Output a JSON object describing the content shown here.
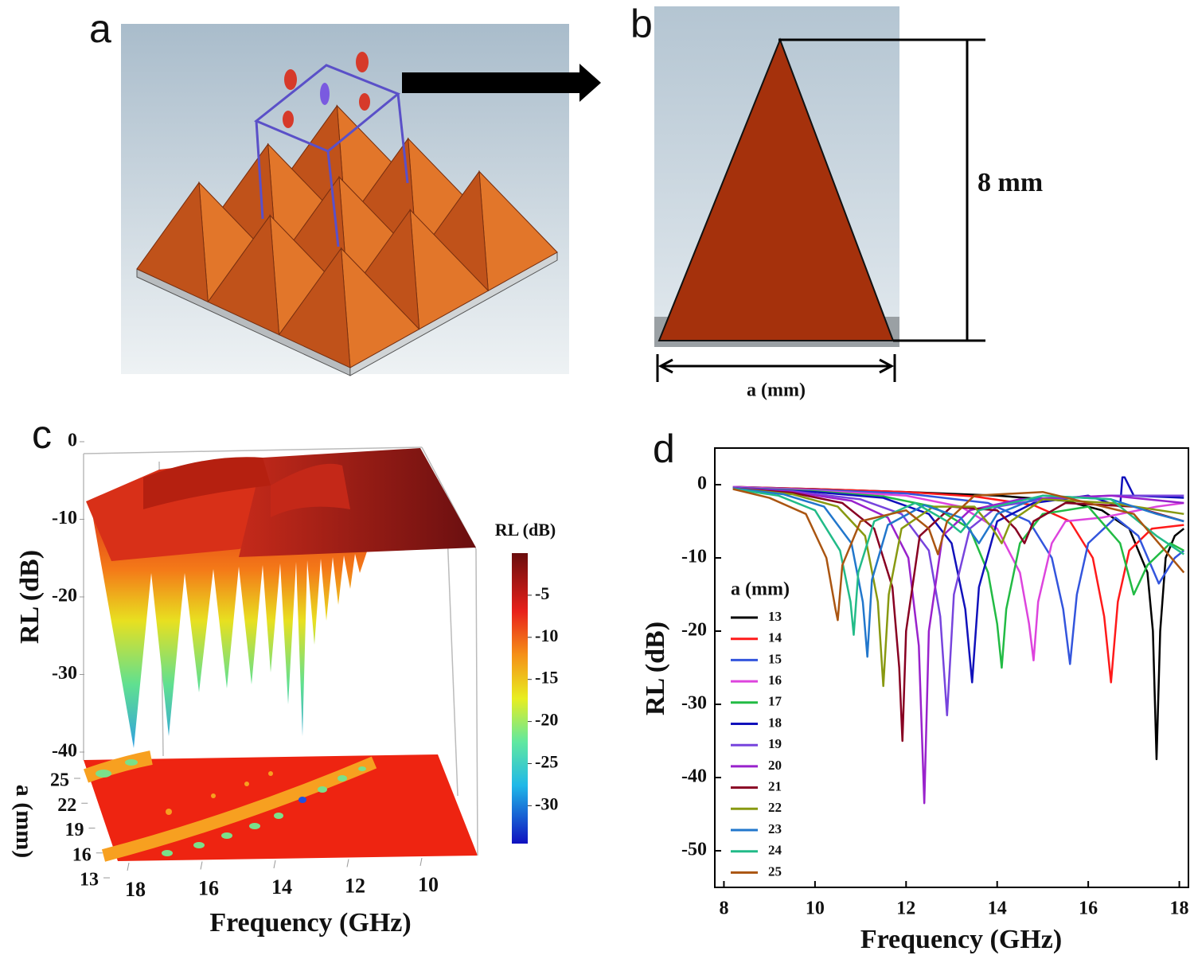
{
  "panel_labels": [
    "a",
    "b",
    "c",
    "d"
  ],
  "panel_b": {
    "height_label": "8 mm",
    "width_label": "a (mm)"
  },
  "panel_c": {
    "z_label": "RL (dB)",
    "z_ticks": [
      0,
      -10,
      -20,
      -30,
      -40
    ],
    "z_lim": [
      0,
      -40
    ],
    "a_label": "a (mm)",
    "a_ticks": [
      25,
      22,
      19,
      16,
      13
    ],
    "a_lim": [
      13,
      25
    ],
    "x_label": "Frequency (GHz)",
    "x_ticks": [
      18,
      16,
      14,
      12,
      10
    ],
    "x_lim": [
      18,
      10
    ],
    "colorbar": {
      "label": "RL (dB)",
      "ticks": [
        -5,
        -10,
        -15,
        -20,
        -25,
        -30
      ],
      "lim": [
        0,
        -34.5
      ]
    }
  },
  "chart_data": {
    "type": "line",
    "xlabel": "Frequency (GHz)",
    "ylabel": "RL (dB)",
    "legend_title": "a (mm)",
    "xlim": [
      7.8,
      18.2
    ],
    "ylim": [
      -55,
      5
    ],
    "xticks": [
      8,
      10,
      12,
      14,
      16,
      18
    ],
    "yticks": [
      0,
      -10,
      -20,
      -30,
      -40,
      -50
    ],
    "series": [
      {
        "name": "13",
        "color": "#000000",
        "x": [
          8.2,
          10,
          12,
          14,
          15.5,
          16.3,
          16.9,
          17.3,
          17.42,
          17.5,
          17.58,
          17.7,
          17.9,
          18.1
        ],
        "values": [
          -0.3,
          -0.6,
          -1,
          -1.5,
          -2.2,
          -3.5,
          -6,
          -12,
          -20,
          -37.5,
          -20,
          -10,
          -7,
          -6
        ]
      },
      {
        "name": "14",
        "color": "#ff1a1a",
        "x": [
          8.2,
          10,
          12,
          13.5,
          14.8,
          15.6,
          16.1,
          16.35,
          16.5,
          16.65,
          16.9,
          17.4,
          18.1
        ],
        "values": [
          -0.3,
          -0.6,
          -1,
          -1.6,
          -2.8,
          -5,
          -10,
          -18,
          -27,
          -16,
          -9,
          -6,
          -5.5
        ]
      },
      {
        "name": "15",
        "color": "#3355dd",
        "x": [
          8.2,
          10,
          12,
          13.8,
          14.7,
          15.2,
          15.45,
          15.6,
          15.75,
          16,
          16.6,
          17.1,
          17.55,
          17.9,
          18.1
        ],
        "values": [
          -0.3,
          -0.7,
          -1.2,
          -2.5,
          -5,
          -10,
          -17,
          -24.5,
          -15,
          -8,
          -4.5,
          -7,
          -13.5,
          -10,
          -9
        ]
      },
      {
        "name": "16",
        "color": "#dd44dd",
        "x": [
          8.2,
          10,
          12,
          13.2,
          14,
          14.5,
          14.7,
          14.8,
          14.9,
          15.2,
          15.5,
          16.3,
          17.5,
          18.1
        ],
        "values": [
          -0.3,
          -0.8,
          -1.5,
          -3,
          -6,
          -12,
          -19,
          -24,
          -16,
          -8,
          -5,
          -4.5,
          -3,
          -2.5
        ]
      },
      {
        "name": "17",
        "color": "#22bb44",
        "x": [
          8.2,
          10,
          11.5,
          12.6,
          13.4,
          13.8,
          14,
          14.1,
          14.2,
          14.5,
          15,
          16,
          16.7,
          17,
          17.3,
          17.8,
          18.1
        ],
        "values": [
          -0.4,
          -0.9,
          -1.6,
          -3,
          -6,
          -12,
          -19,
          -25,
          -17,
          -8,
          -4,
          -3,
          -8,
          -15,
          -11,
          -8,
          -9
        ]
      },
      {
        "name": "18",
        "color": "#1111bb",
        "x": [
          8.2,
          10,
          11.5,
          12.5,
          13,
          13.3,
          13.45,
          13.6,
          14,
          14.8,
          16,
          16.7,
          16.75,
          16.8,
          17,
          18.1
        ],
        "values": [
          -0.4,
          -1,
          -1.8,
          -4,
          -8,
          -17,
          -27,
          -14,
          -5,
          -2.5,
          -1.5,
          -3,
          1,
          1,
          -1.5,
          -1.8
        ]
      },
      {
        "name": "19",
        "color": "#7744dd",
        "x": [
          8.2,
          9.5,
          11,
          11.9,
          12.5,
          12.75,
          12.9,
          13.05,
          13.4,
          14,
          15,
          16.5,
          18.1
        ],
        "values": [
          -0.4,
          -0.9,
          -2,
          -4,
          -9,
          -18,
          -31.5,
          -15,
          -6,
          -3,
          -2,
          -1.5,
          -1.5
        ]
      },
      {
        "name": "20",
        "color": "#9922cc",
        "x": [
          8.2,
          9.5,
          10.8,
          11.6,
          12.05,
          12.28,
          12.4,
          12.5,
          12.8,
          13.4,
          14.5,
          16.5,
          18.1
        ],
        "values": [
          -0.5,
          -1,
          -2.2,
          -4.5,
          -10,
          -22,
          -43.5,
          -20,
          -7,
          -3.5,
          -2,
          -1.5,
          -2.5
        ]
      },
      {
        "name": "21",
        "color": "#880022",
        "x": [
          8.2,
          9.5,
          10.6,
          11.3,
          11.7,
          11.85,
          11.92,
          12,
          12.3,
          13,
          14,
          14.4,
          14.6,
          14.8,
          15.5,
          17,
          18.1
        ],
        "values": [
          -0.5,
          -1.1,
          -2.5,
          -6,
          -14,
          -25,
          -35,
          -20,
          -7,
          -3,
          -3.5,
          -6,
          -8,
          -5,
          -2.5,
          -3,
          -5
        ]
      },
      {
        "name": "22",
        "color": "#889911",
        "x": [
          8.2,
          9.5,
          10.5,
          11.1,
          11.38,
          11.5,
          11.62,
          11.9,
          12.6,
          13.5,
          13.9,
          14.1,
          14.3,
          15,
          16.5,
          18.1
        ],
        "values": [
          -0.5,
          -1.3,
          -3,
          -7,
          -16,
          -27.5,
          -15,
          -6,
          -3,
          -3,
          -6,
          -8,
          -5,
          -2,
          -2.5,
          -4
        ]
      },
      {
        "name": "23",
        "color": "#2277cc",
        "x": [
          8.2,
          9.3,
          10.2,
          10.8,
          11.05,
          11.15,
          11.25,
          11.6,
          12.4,
          13.2,
          13.6,
          14,
          15,
          16.5,
          17.5,
          18.1
        ],
        "values": [
          -0.5,
          -1.3,
          -3,
          -8,
          -16,
          -23.5,
          -13,
          -5.5,
          -2.8,
          -4.5,
          -8,
          -4,
          -1.5,
          -2,
          -4,
          -5
        ]
      },
      {
        "name": "24",
        "color": "#22bb88",
        "x": [
          8.2,
          9.2,
          10,
          10.55,
          10.78,
          10.85,
          10.95,
          11.3,
          12.2,
          12.9,
          13.2,
          13.6,
          15,
          16.5,
          17.5,
          18.1
        ],
        "values": [
          -0.6,
          -1.5,
          -3.5,
          -9,
          -16,
          -20.5,
          -12,
          -5,
          -2.5,
          -5,
          -6.5,
          -3.5,
          -1.5,
          -2,
          -7,
          -9.5
        ]
      },
      {
        "name": "25",
        "color": "#aa5511",
        "x": [
          8.2,
          9,
          9.8,
          10.25,
          10.45,
          10.5,
          10.6,
          11,
          12,
          12.5,
          12.7,
          12.9,
          13.5,
          15,
          17,
          18.1
        ],
        "values": [
          -0.6,
          -1.8,
          -4,
          -10,
          -17,
          -18.5,
          -11,
          -5,
          -3.5,
          -6,
          -9.5,
          -5,
          -1.5,
          -1,
          -4,
          -12
        ]
      }
    ]
  }
}
